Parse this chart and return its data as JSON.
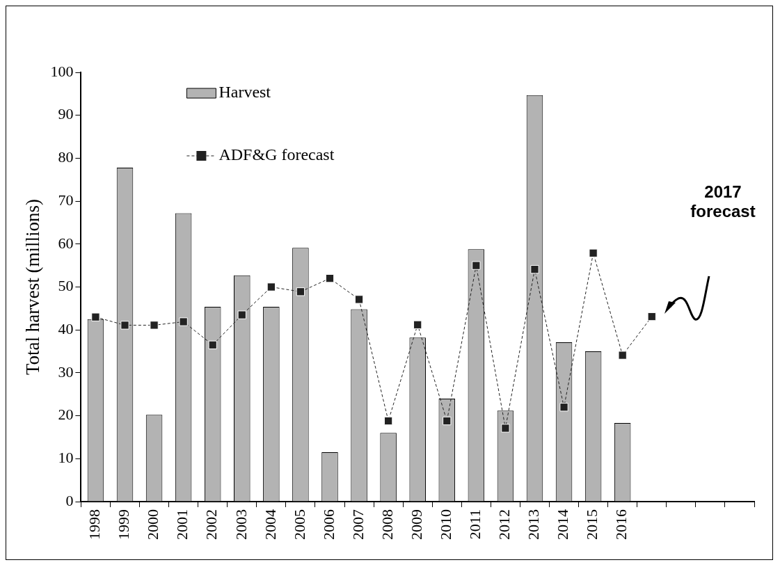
{
  "chart_data": {
    "type": "bar",
    "ylabel": "Total harvest (millions)",
    "categories": [
      "1998",
      "1999",
      "2000",
      "2001",
      "2002",
      "2003",
      "2004",
      "2005",
      "2006",
      "2007",
      "2008",
      "2009",
      "2010",
      "2011",
      "2012",
      "2013",
      "2014",
      "2015",
      "2016",
      null,
      null,
      null,
      null
    ],
    "series": [
      {
        "name": "Harvest",
        "color": "#b3b3b3",
        "values": [
          42.5,
          77.8,
          20.2,
          67.2,
          45.4,
          52.7,
          45.4,
          59.1,
          11.5,
          44.8,
          16.0,
          38.2,
          24.0,
          58.8,
          21.2,
          94.7,
          37.1,
          35.0,
          18.3,
          null,
          null,
          null,
          null
        ]
      },
      {
        "name": "ADF&G forecast",
        "type": "line",
        "color": "#222222",
        "marker": "square",
        "line_style": "dashed",
        "values": [
          43.0,
          41.1,
          41.1,
          41.9,
          36.5,
          43.5,
          50.0,
          48.9,
          52.0,
          47.1,
          18.8,
          41.2,
          18.8,
          55.0,
          17.1,
          54.1,
          22.0,
          57.9,
          34.1,
          43.1,
          null,
          null,
          null
        ]
      }
    ],
    "ylim": [
      0,
      100
    ],
    "yticks": [
      0,
      10,
      20,
      30,
      40,
      50,
      60,
      70,
      80,
      90,
      100
    ],
    "grid": false,
    "legend": "top left",
    "annotations": [
      "2017 forecast"
    ]
  }
}
